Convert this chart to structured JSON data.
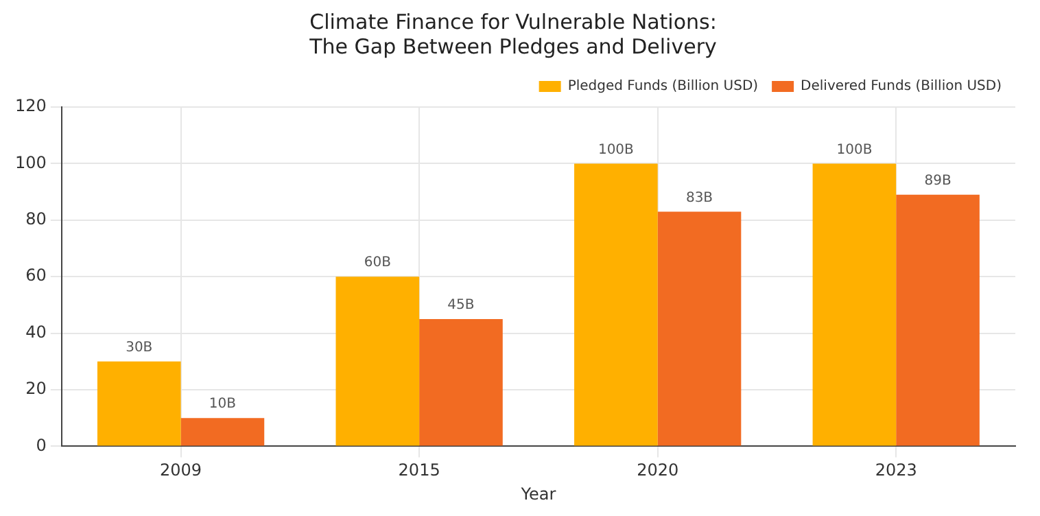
{
  "chart_data": {
    "type": "bar",
    "title": "Climate Finance for Vulnerable Nations:\nThe Gap Between Pledges and Delivery",
    "xlabel": "Year",
    "categories": [
      "2009",
      "2015",
      "2020",
      "2023"
    ],
    "series": [
      {
        "name": "Pledged Funds (Billion USD)",
        "color": "#ffb000",
        "values": [
          30,
          60,
          100,
          100
        ],
        "value_labels": [
          "30B",
          "60B",
          "100B",
          "100B"
        ]
      },
      {
        "name": "Delivered Funds (Billion USD)",
        "color": "#f26b22",
        "values": [
          10,
          45,
          83,
          89
        ],
        "value_labels": [
          "10B",
          "45B",
          "83B",
          "89B"
        ]
      }
    ],
    "ylim": [
      0,
      120
    ],
    "yticks": [
      0,
      20,
      40,
      60,
      80,
      100,
      120
    ],
    "grid": true,
    "legend": "top right"
  }
}
